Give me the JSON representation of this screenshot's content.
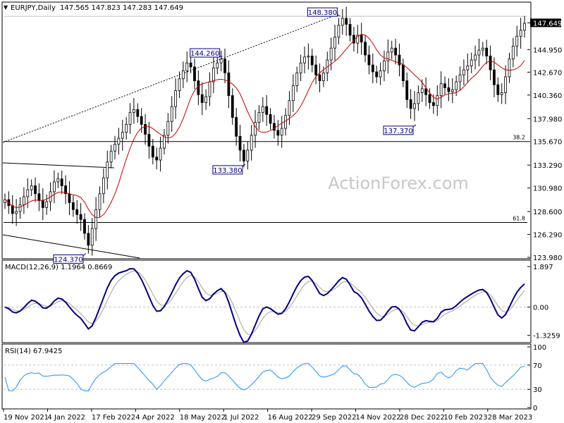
{
  "chart_data": {
    "type": "candlestick",
    "header": {
      "symbol_label": "EURJPY,Daily",
      "ohlc_text": "147.565 147.823 147.283 147.649"
    },
    "watermark": "ActionForex.com",
    "x_tick_labels": [
      "19 Nov 2021",
      "4 Jan 2022",
      "17 Feb 2022",
      "4 Apr 2022",
      "18 May 2022",
      "1 Jul 2022",
      "16 Aug 2022",
      "29 Sep 2022",
      "14 Nov 2022",
      "28 Dec 2022",
      "10 Feb 2023",
      "28 Mar 2023"
    ],
    "price_panel": {
      "y_tick_labels": [
        "147.649",
        "144.950",
        "142.670",
        "140.360",
        "137.980",
        "135.670",
        "133.290",
        "130.980",
        "128.600",
        "126.290",
        "123.980"
      ],
      "ylim": [
        123.98,
        149.1
      ],
      "last_price": 147.649,
      "sma_color": "#cc0000",
      "candle_color": "#000000",
      "close_approx": [
        129.8,
        129.2,
        128.4,
        128.6,
        129.3,
        130.1,
        130.8,
        131.2,
        130.4,
        129.7,
        129.0,
        129.6,
        130.6,
        131.6,
        131.9,
        131.2,
        130.4,
        129.5,
        128.8,
        128.3,
        127.8,
        126.4,
        125.2,
        126.9,
        128.8,
        130.4,
        132.0,
        133.6,
        134.7,
        135.4,
        136.0,
        136.6,
        137.4,
        138.6,
        138.9,
        138.2,
        137.4,
        136.4,
        135.2,
        134.1,
        133.8,
        135.0,
        136.3,
        137.7,
        139.2,
        140.8,
        142.0,
        142.8,
        143.6,
        143.2,
        141.8,
        140.4,
        139.6,
        140.2,
        141.7,
        143.1,
        143.6,
        144.0,
        142.6,
        140.3,
        138.1,
        136.2,
        134.8,
        133.7,
        134.8,
        136.3,
        137.6,
        138.6,
        139.2,
        138.4,
        137.5,
        136.8,
        136.3,
        137.0,
        138.3,
        139.8,
        141.3,
        142.6,
        143.6,
        144.2,
        144.3,
        143.4,
        142.4,
        141.8,
        142.6,
        143.9,
        145.1,
        146.2,
        147.4,
        148.1,
        147.5,
        146.4,
        145.6,
        146.4,
        145.7,
        144.4,
        143.4,
        142.7,
        142.2,
        142.8,
        143.8,
        144.7,
        145.1,
        144.4,
        143.4,
        141.8,
        139.9,
        139.0,
        139.5,
        140.6,
        141.0,
        140.4,
        139.6,
        139.3,
        140.3,
        141.5,
        141.1,
        140.7,
        140.9,
        141.7,
        142.4,
        142.9,
        143.3,
        143.9,
        144.4,
        144.9,
        145.1,
        144.3,
        142.9,
        141.4,
        140.4,
        140.6,
        142.2,
        144.0,
        145.3,
        146.3,
        146.9,
        147.6
      ],
      "annotations": [
        {
          "label": "148.380",
          "price": 148.38,
          "index": 88
        },
        {
          "label": "144.260",
          "price": 144.26,
          "index": 57
        },
        {
          "label": "133.380",
          "price": 133.38,
          "index": 63
        },
        {
          "label": "137.370",
          "price": 137.37,
          "index": 108
        },
        {
          "label": "124.370",
          "price": 124.37,
          "index": 21
        }
      ],
      "fib_levels": [
        {
          "label": "38.2",
          "price": 135.67
        },
        {
          "label": "61.8",
          "price": 127.5
        }
      ]
    },
    "macd_panel": {
      "title": "MACD(12,26,9) 1.1964 0.8669",
      "y_tick_labels": [
        "1.897",
        "0.00",
        "-1.3259"
      ],
      "ylim": [
        -1.6,
        2.1
      ],
      "macd_color": "#000080",
      "signal_color": "#a0a0a0"
    },
    "rsi_panel": {
      "title": "RSI(14) 67.9425",
      "y_tick_labels": [
        "100",
        "70",
        "30",
        "0"
      ],
      "levels": [
        30,
        70
      ],
      "line_color": "#1e90ff"
    }
  }
}
